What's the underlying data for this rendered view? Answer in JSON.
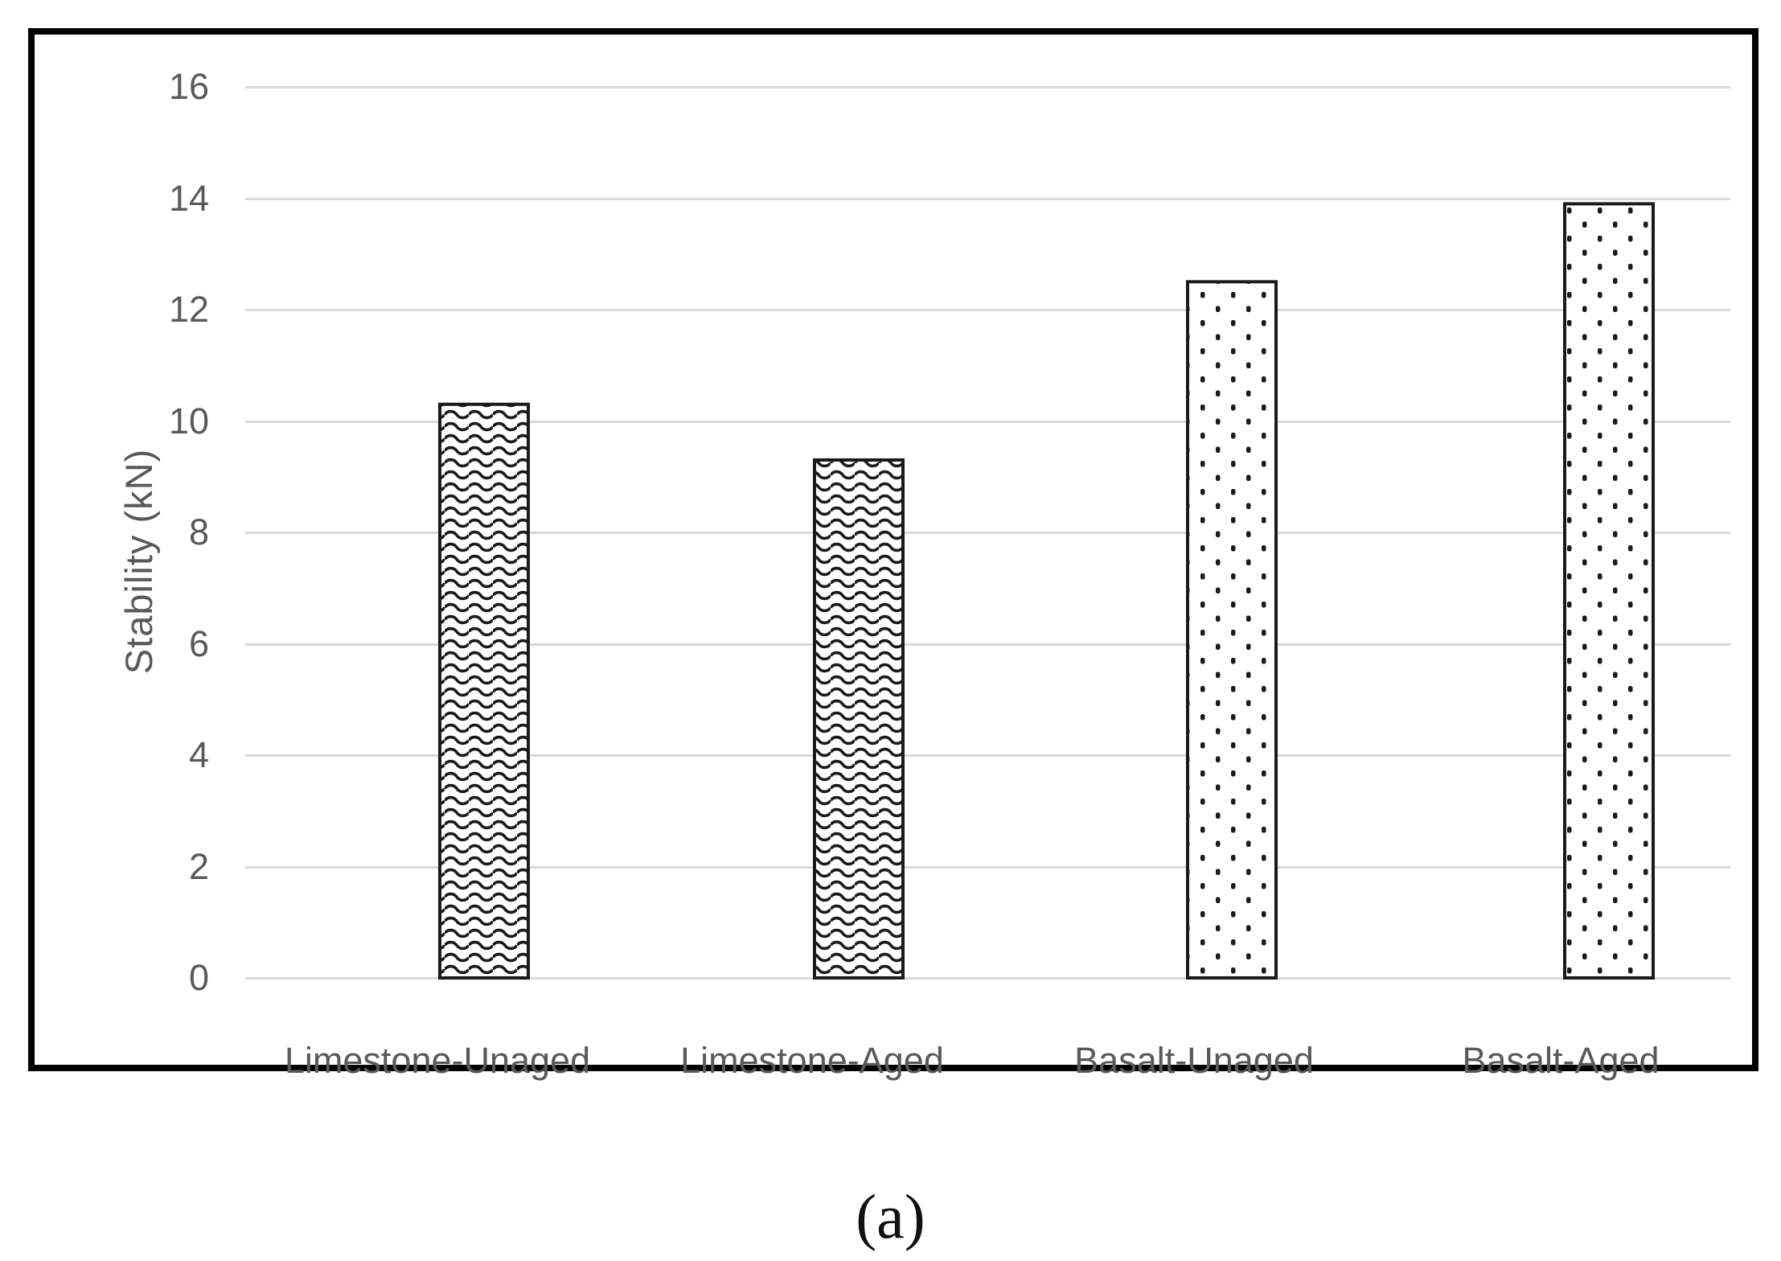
{
  "chart_data": {
    "type": "bar",
    "categories": [
      "Limestone-Unaged",
      "Limestone-Aged",
      "Basalt-Unaged",
      "Basalt-Aged"
    ],
    "values": [
      10.3,
      9.3,
      12.5,
      13.9
    ],
    "bar_patterns": [
      "wave",
      "wave",
      "dots",
      "dots"
    ],
    "title": "",
    "xlabel": "",
    "ylabel": "Stability (kN)",
    "ylim": [
      0,
      16
    ],
    "yticks": [
      0,
      2,
      4,
      6,
      8,
      10,
      12,
      14,
      16
    ],
    "grid": "horizontal",
    "legend": "none",
    "caption": "(a)",
    "colors": {
      "axis_text": "#595959",
      "gridline": "#d9d9d9",
      "bar_stroke": "#1a1a1a",
      "bar_fill": "#ffffff",
      "frame_border": "#000000",
      "caption_text": "#111111"
    }
  }
}
